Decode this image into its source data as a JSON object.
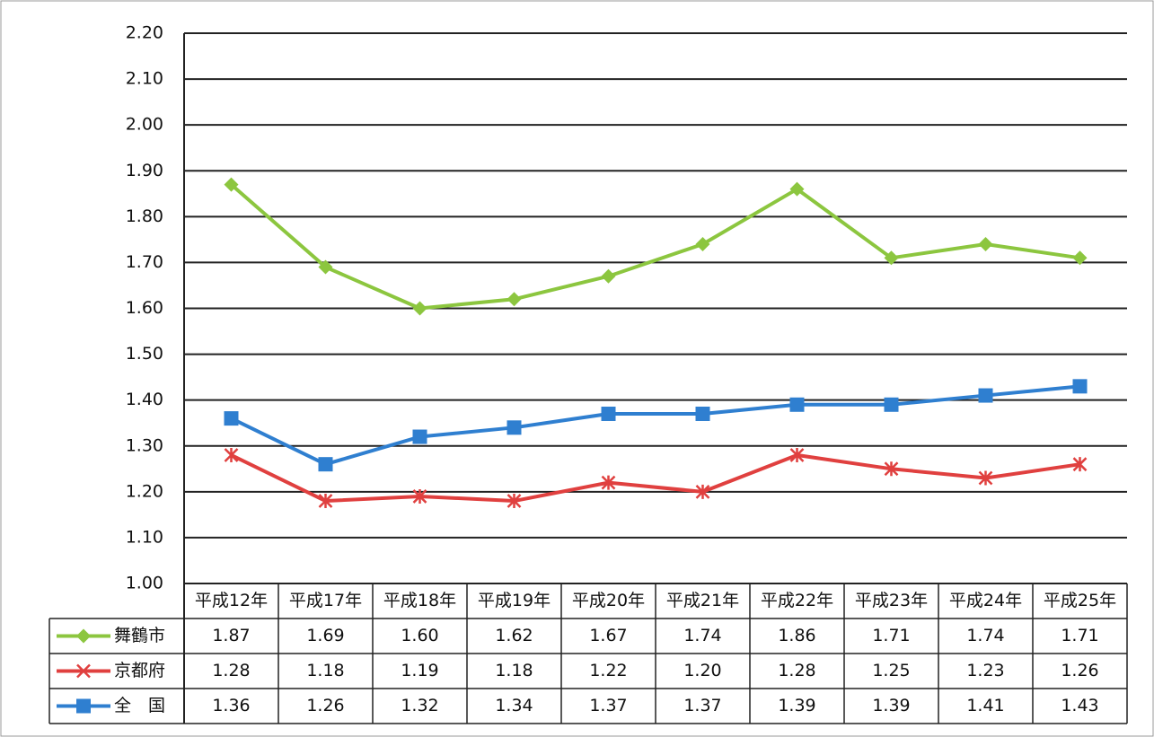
{
  "chart_data": {
    "type": "line",
    "categories": [
      "平成12年",
      "平成17年",
      "平成18年",
      "平成19年",
      "平成20年",
      "平成21年",
      "平成22年",
      "平成23年",
      "平成24年",
      "平成25年"
    ],
    "series": [
      {
        "name": "舞鶴市",
        "color": "#8cc63f",
        "marker": "diamond",
        "values": [
          1.87,
          1.69,
          1.6,
          1.62,
          1.67,
          1.74,
          1.86,
          1.71,
          1.74,
          1.71
        ],
        "value_labels": [
          "1.87",
          "1.69",
          "1.60",
          "1.62",
          "1.67",
          "1.74",
          "1.86",
          "1.71",
          "1.74",
          "1.71"
        ]
      },
      {
        "name": "京都府",
        "color": "#e0403f",
        "marker": "star",
        "values": [
          1.28,
          1.18,
          1.19,
          1.18,
          1.22,
          1.2,
          1.28,
          1.25,
          1.23,
          1.26
        ],
        "value_labels": [
          "1.28",
          "1.18",
          "1.19",
          "1.18",
          "1.22",
          "1.20",
          "1.28",
          "1.25",
          "1.23",
          "1.26"
        ]
      },
      {
        "name": "全　国",
        "color": "#2f7fd0",
        "marker": "square",
        "values": [
          1.36,
          1.26,
          1.32,
          1.34,
          1.37,
          1.37,
          1.39,
          1.39,
          1.41,
          1.43
        ],
        "value_labels": [
          "1.36",
          "1.26",
          "1.32",
          "1.34",
          "1.37",
          "1.37",
          "1.39",
          "1.39",
          "1.41",
          "1.43"
        ]
      }
    ],
    "ylim": [
      1.0,
      2.2
    ],
    "yticks": [
      {
        "value": 1.0,
        "label": "1.00"
      },
      {
        "value": 1.1,
        "label": "1.10"
      },
      {
        "value": 1.2,
        "label": "1.20"
      },
      {
        "value": 1.3,
        "label": "1.30"
      },
      {
        "value": 1.4,
        "label": "1.40"
      },
      {
        "value": 1.5,
        "label": "1.50"
      },
      {
        "value": 1.6,
        "label": "1.60"
      },
      {
        "value": 1.7,
        "label": "1.70"
      },
      {
        "value": 1.8,
        "label": "1.80"
      },
      {
        "value": 1.9,
        "label": "1.90"
      },
      {
        "value": 2.0,
        "label": "2.00"
      },
      {
        "value": 2.1,
        "label": "2.10"
      },
      {
        "value": 2.2,
        "label": "2.20"
      }
    ],
    "grid": true,
    "data_table": true
  }
}
